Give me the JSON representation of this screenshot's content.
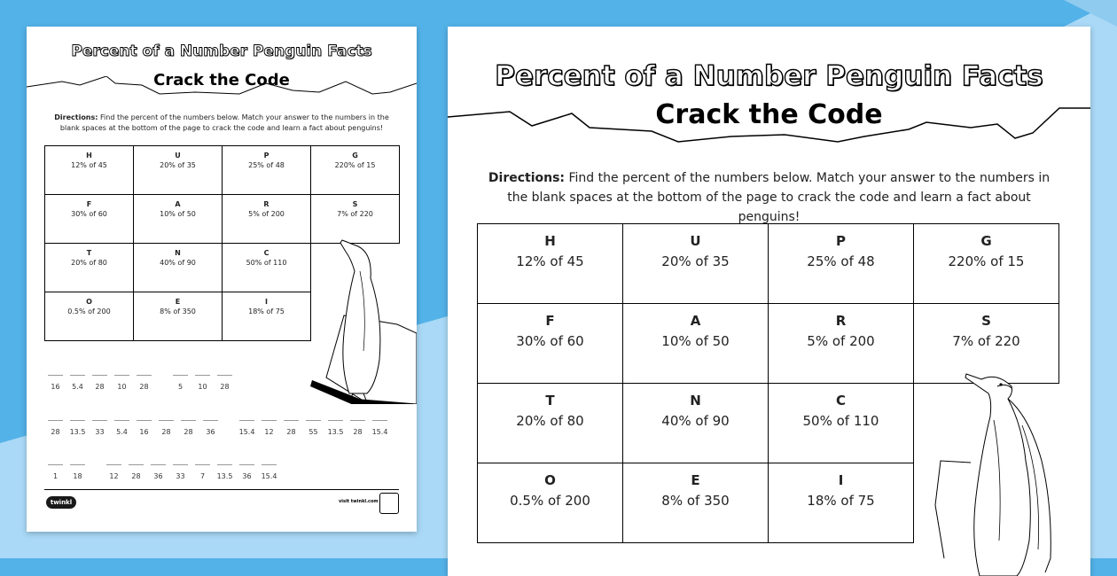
{
  "sheet": {
    "title": "Percent of a Number Penguin Facts",
    "subtitle": "Crack the Code",
    "directions_label": "Directions:",
    "directions_text": " Find the percent of the numbers below. Match your answer to the numbers in the blank spaces at the bottom of the page to crack the code and learn a fact about penguins!"
  },
  "cells": [
    {
      "letter": "H",
      "expr": "12% of 45"
    },
    {
      "letter": "U",
      "expr": "20% of 35"
    },
    {
      "letter": "P",
      "expr": "25% of 48"
    },
    {
      "letter": "G",
      "expr": "220% of 15"
    },
    {
      "letter": "F",
      "expr": "30% of 60"
    },
    {
      "letter": "A",
      "expr": "10% of 50"
    },
    {
      "letter": "R",
      "expr": "5% of 200"
    },
    {
      "letter": "S",
      "expr": "7% of 220"
    },
    {
      "letter": "T",
      "expr": "20% of 80"
    },
    {
      "letter": "N",
      "expr": "40% of 90"
    },
    {
      "letter": "C",
      "expr": "50% of 110"
    },
    {
      "letter": "O",
      "expr": "0.5% of 200"
    },
    {
      "letter": "E",
      "expr": "8% of 350"
    },
    {
      "letter": "I",
      "expr": "18% of 75"
    }
  ],
  "code_lines": [
    [
      "16",
      "5.4",
      "28",
      "10",
      "28",
      "",
      "5",
      "10",
      "28"
    ],
    [
      "28",
      "13.5",
      "33",
      "5.4",
      "16",
      "28",
      "28",
      "36",
      "",
      "15.4",
      "12",
      "28",
      "55",
      "13.5",
      "28",
      "15.4"
    ],
    [
      "1",
      "18",
      "",
      "12",
      "28",
      "36",
      "33",
      "7",
      "13.5",
      "36",
      "15.4"
    ]
  ],
  "footer": {
    "logo": "twinkl",
    "visit": "visit twinkl.com"
  },
  "colors": {
    "background": "#53b2e8",
    "background_light": "#a8d8f5"
  }
}
